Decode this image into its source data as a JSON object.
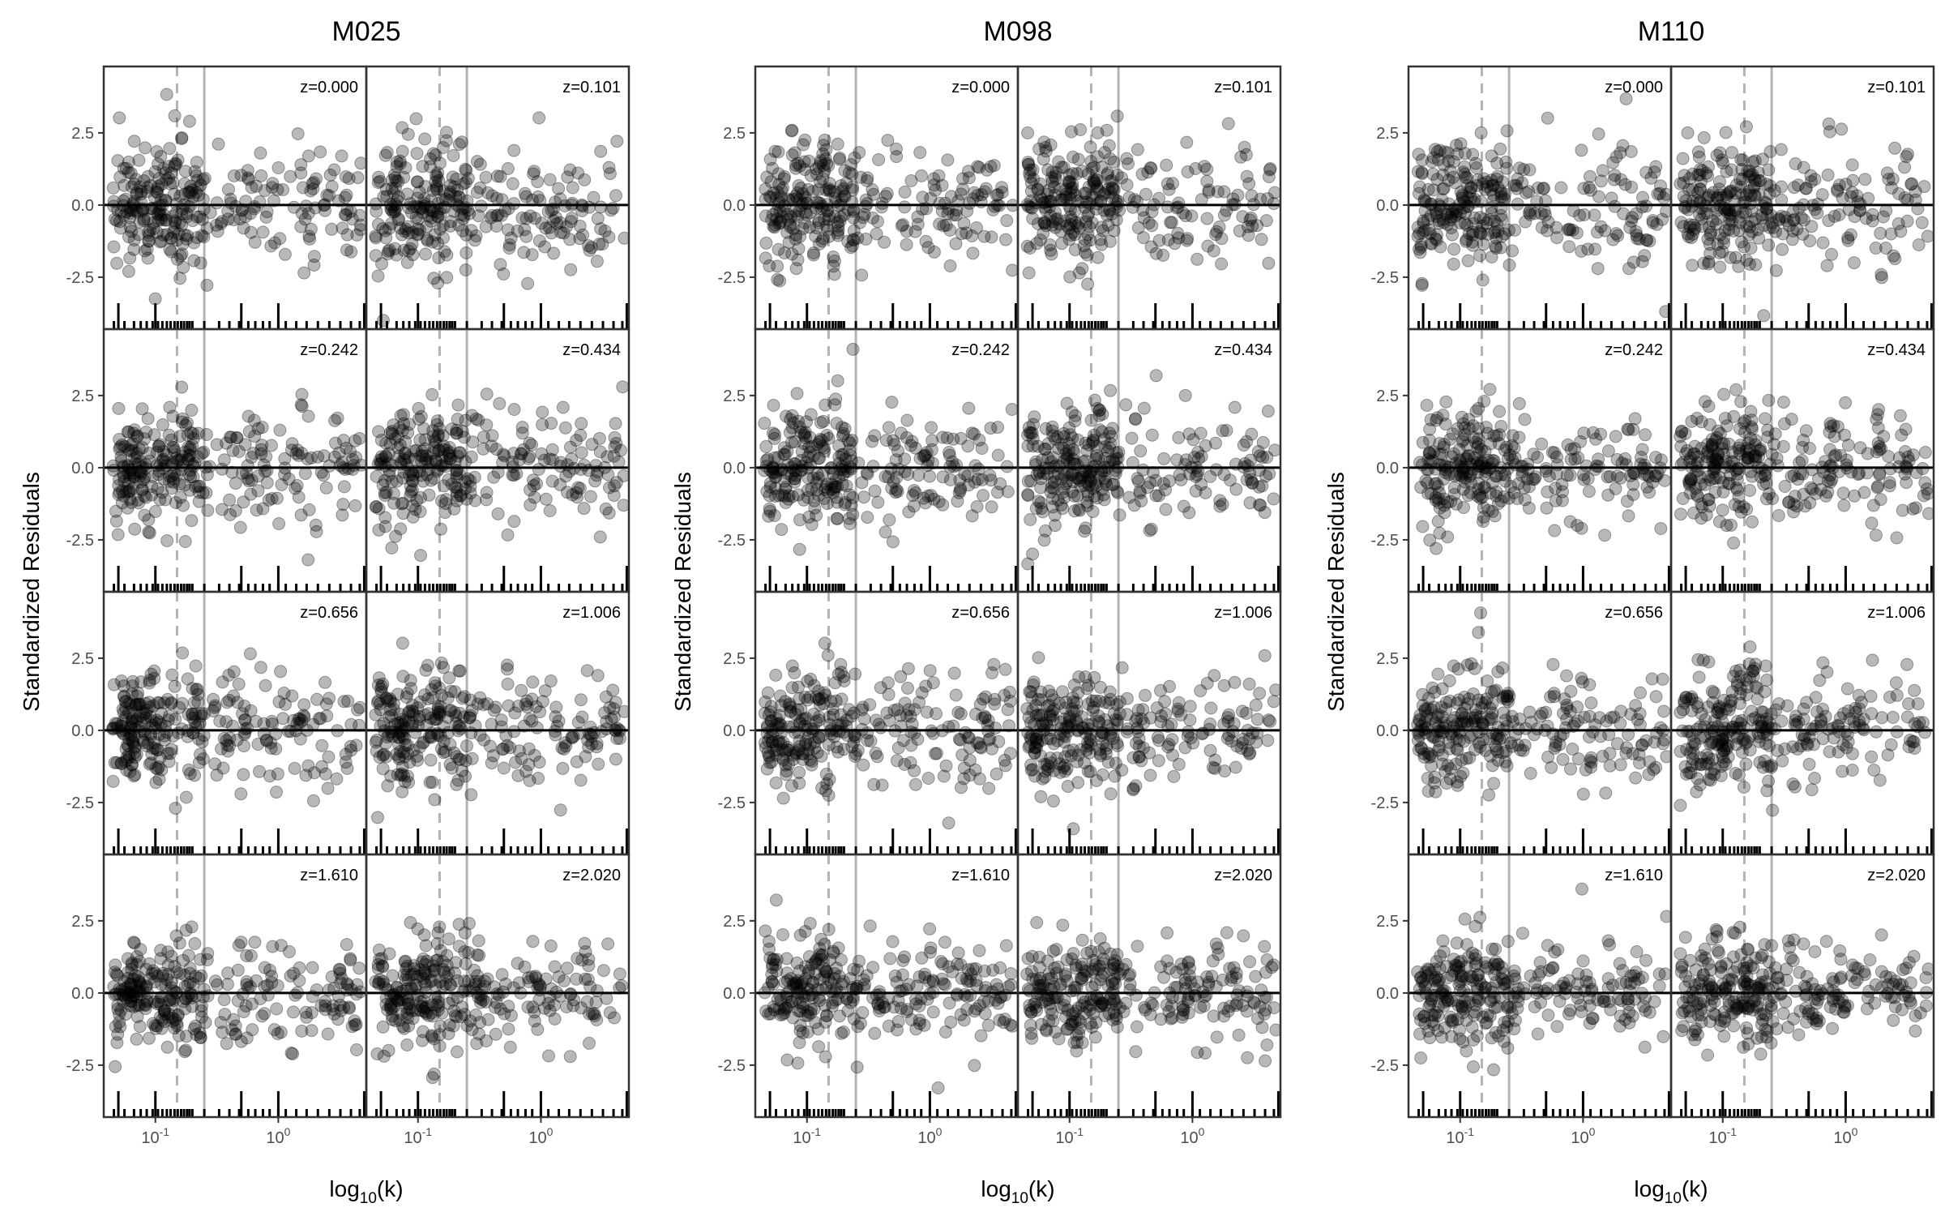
{
  "figure": {
    "ylabel": "Standardized Residuals",
    "xlabel_base": "log",
    "xlabel_sub": "10",
    "xlabel_tail": "(k)",
    "colors": {
      "point_fill": "#000000",
      "zero_line": "#000000",
      "solid_vline": "#b3b3b3",
      "dashed_vline": "#b3b3b3",
      "frame": "#333333"
    }
  },
  "chart_data": {
    "type": "scatter",
    "x_scale": "log10",
    "x_range": [
      0.038,
      5.2
    ],
    "x_ticks": [
      {
        "value": 0.1,
        "label": "10",
        "exp": "-1"
      },
      {
        "value": 1,
        "label": "10",
        "exp": "0"
      }
    ],
    "y_range": [
      -4.3,
      4.8
    ],
    "y_ticks": [
      {
        "value": 2.5,
        "label": "2.5"
      },
      {
        "value": 0,
        "label": "0.0"
      },
      {
        "value": -2.5,
        "label": "-2.5"
      }
    ],
    "hline_y": 0,
    "vline_dashed_k": 0.15,
    "vline_solid_k": 0.25,
    "rug_k": [
      0.046,
      0.056,
      0.067,
      0.076,
      0.085,
      0.095,
      0.105,
      0.114,
      0.124,
      0.133,
      0.143,
      0.152,
      0.162,
      0.171,
      0.181,
      0.19,
      0.2,
      0.25,
      0.33,
      0.4,
      0.48,
      0.57,
      0.65,
      0.75,
      0.85,
      1.0,
      1.15,
      1.4,
      1.7,
      2.1,
      2.6,
      3.2,
      3.9,
      4.6
    ],
    "rug_major_k": [
      0.05,
      0.1,
      0.5,
      1.0,
      5.0
    ],
    "models": [
      {
        "name": "M025",
        "panels": [
          {
            "label": "z=0.000",
            "seed": 11
          },
          {
            "label": "z=0.101",
            "seed": 12
          },
          {
            "label": "z=0.242",
            "seed": 13
          },
          {
            "label": "z=0.434",
            "seed": 14
          },
          {
            "label": "z=0.656",
            "seed": 15
          },
          {
            "label": "z=1.006",
            "seed": 16
          },
          {
            "label": "z=1.610",
            "seed": 17
          },
          {
            "label": "z=2.020",
            "seed": 18
          }
        ]
      },
      {
        "name": "M098",
        "panels": [
          {
            "label": "z=0.000",
            "seed": 21
          },
          {
            "label": "z=0.101",
            "seed": 22
          },
          {
            "label": "z=0.242",
            "seed": 23
          },
          {
            "label": "z=0.434",
            "seed": 24
          },
          {
            "label": "z=0.656",
            "seed": 25
          },
          {
            "label": "z=1.006",
            "seed": 26
          },
          {
            "label": "z=1.610",
            "seed": 27
          },
          {
            "label": "z=2.020",
            "seed": 28
          }
        ]
      },
      {
        "name": "M110",
        "panels": [
          {
            "label": "z=0.000",
            "seed": 31
          },
          {
            "label": "z=0.101",
            "seed": 32
          },
          {
            "label": "z=0.242",
            "seed": 33
          },
          {
            "label": "z=0.434",
            "seed": 34
          },
          {
            "label": "z=0.656",
            "seed": 35
          },
          {
            "label": "z=1.006",
            "seed": 36
          },
          {
            "label": "z=1.610",
            "seed": 37
          },
          {
            "label": "z=2.020",
            "seed": 38
          }
        ]
      }
    ]
  }
}
